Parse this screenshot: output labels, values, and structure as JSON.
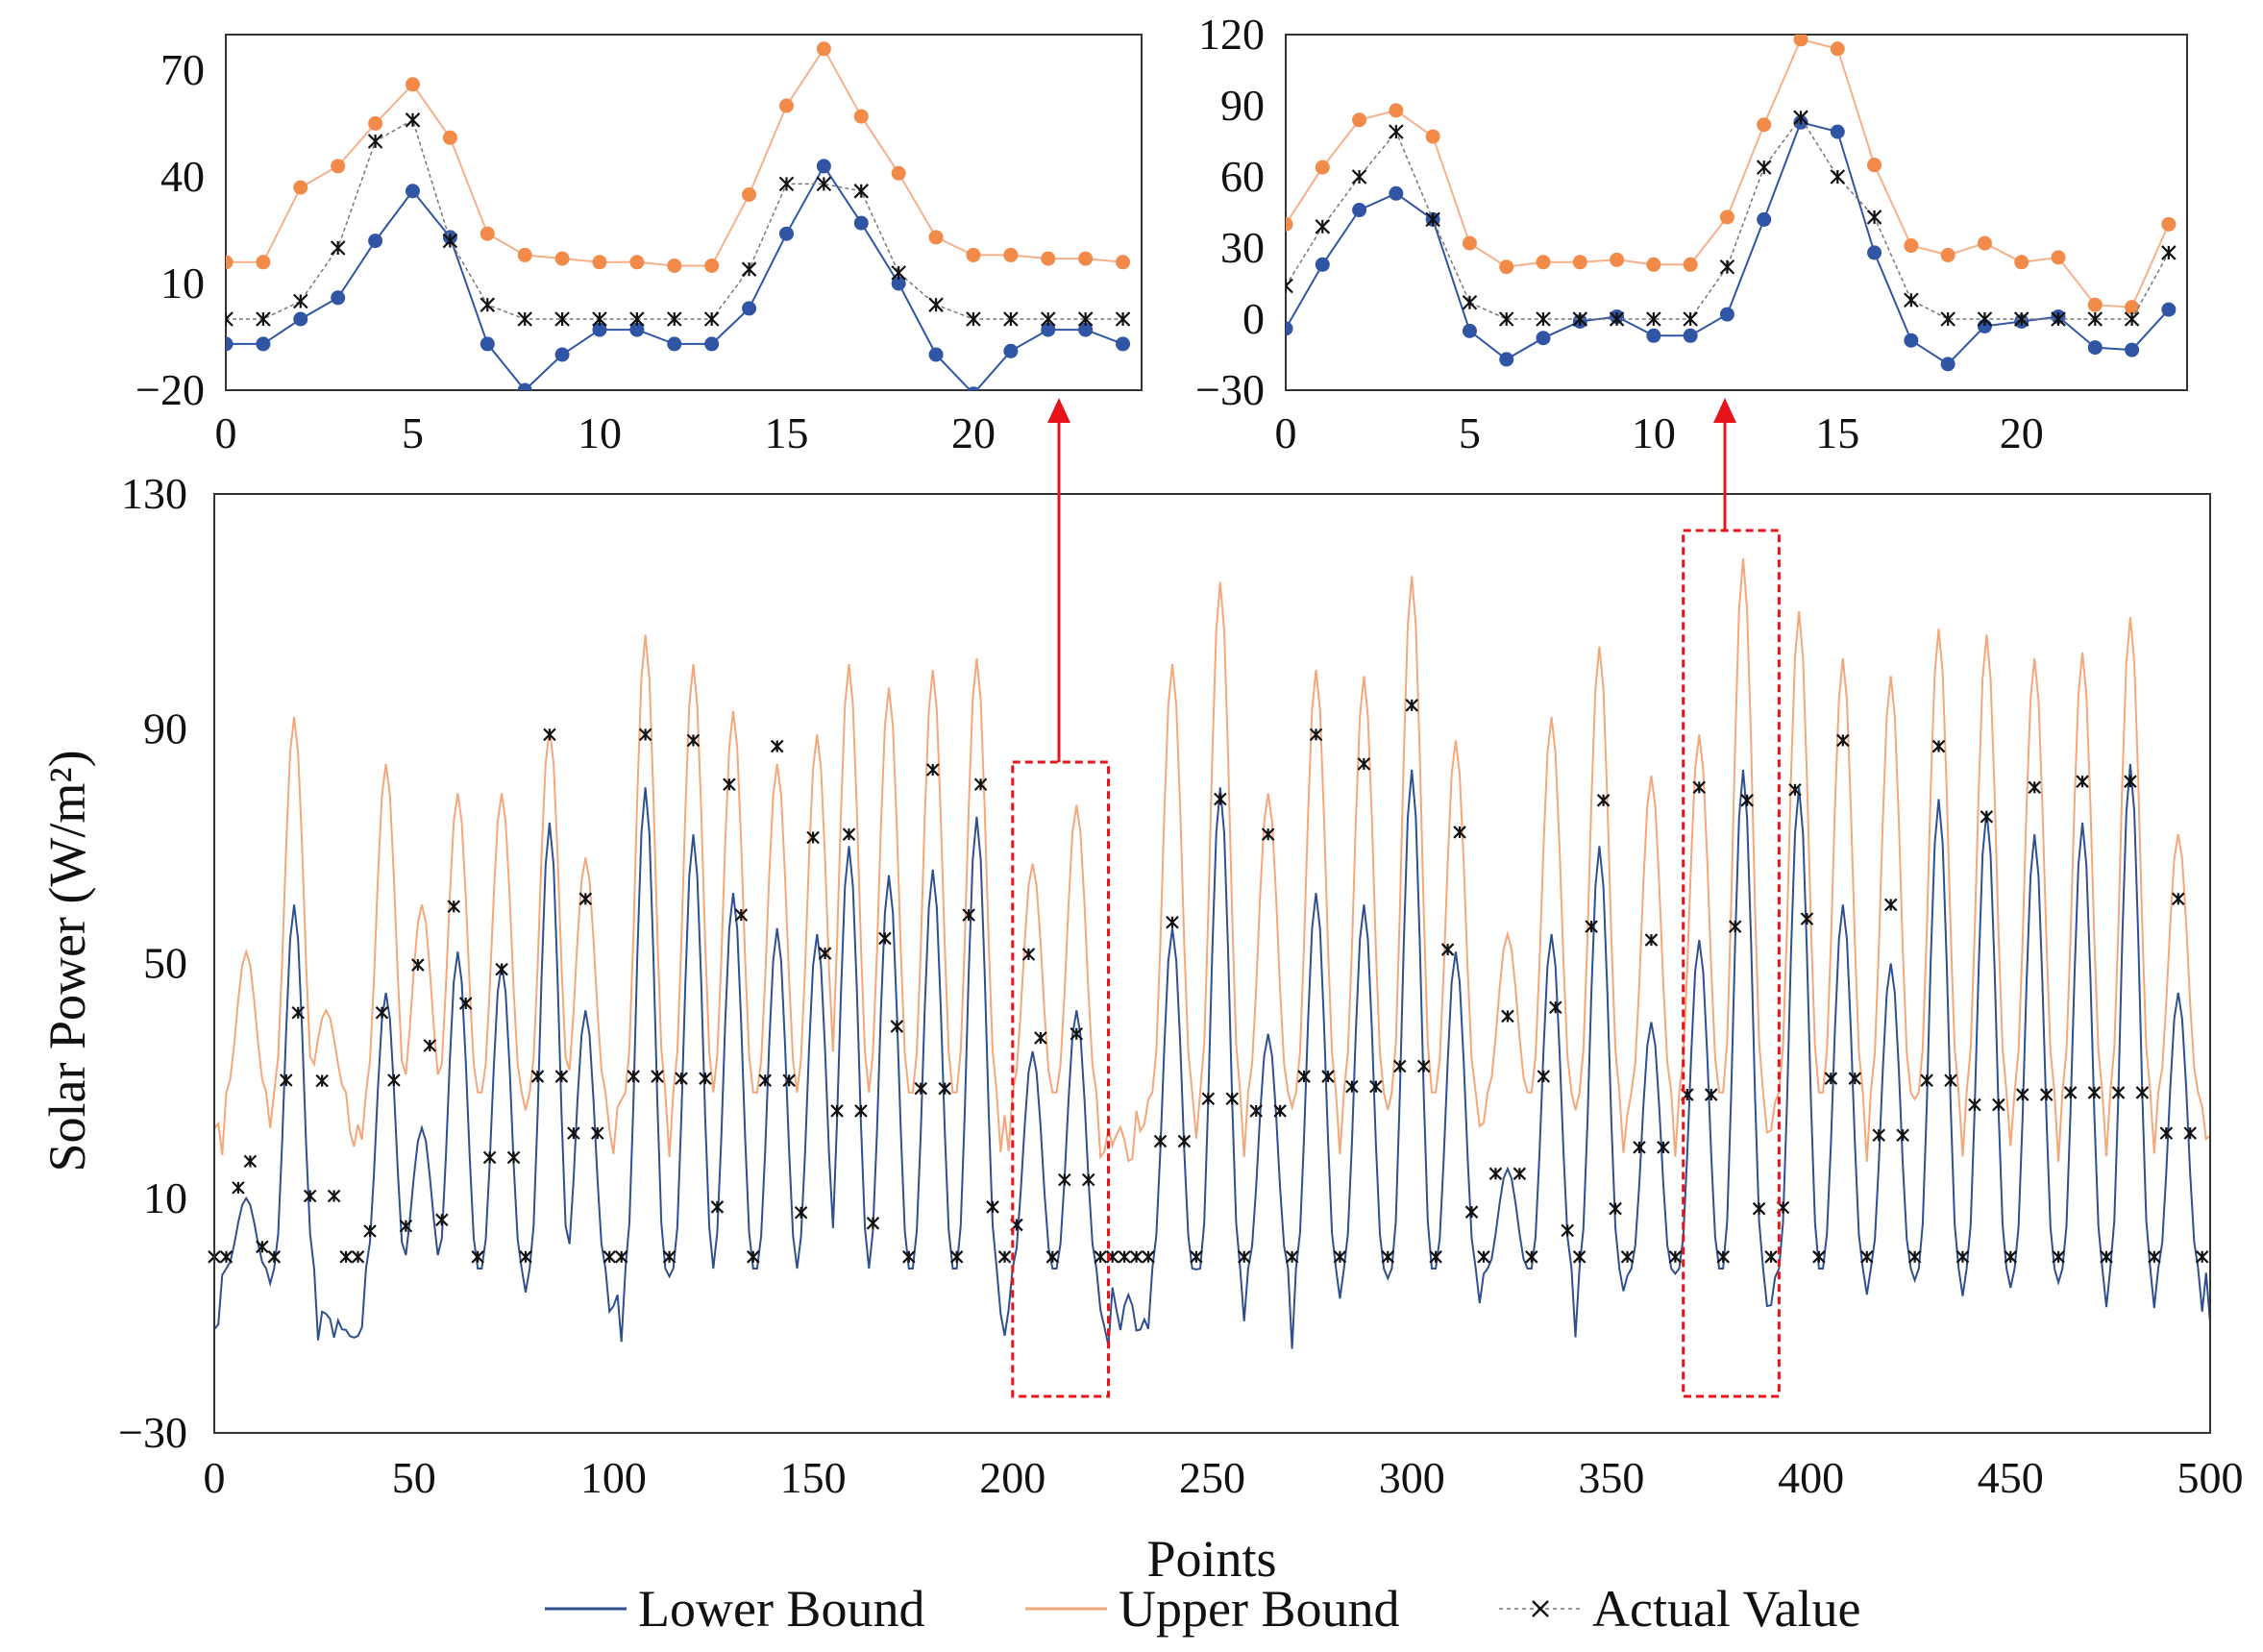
{
  "chart_data": [
    {
      "id": "main",
      "type": "line",
      "title": "",
      "xlabel": "Points",
      "ylabel": "Solar Power (W/m²)",
      "xlim": [
        0,
        500
      ],
      "ylim": [
        -30,
        130
      ],
      "xticks": [
        0,
        50,
        100,
        150,
        200,
        250,
        300,
        350,
        400,
        450,
        500
      ],
      "yticks": [
        -30,
        10,
        50,
        90,
        130
      ],
      "grid": false,
      "legend_position": "bottom",
      "legend": [
        "Lower Bound",
        "Upper Bound",
        "Actual Value"
      ],
      "series": [
        {
          "name": "Lower Bound",
          "color": "#2f4f8f",
          "style": "line",
          "days": [
            {
              "x": 8,
              "peak": 10
            },
            {
              "x": 20,
              "peak": 60
            },
            {
              "x": 43,
              "peak": 45
            },
            {
              "x": 52,
              "peak": 22
            },
            {
              "x": 61,
              "peak": 52
            },
            {
              "x": 72,
              "peak": 50
            },
            {
              "x": 84,
              "peak": 74
            },
            {
              "x": 93,
              "peak": 42
            },
            {
              "x": 108,
              "peak": 80
            },
            {
              "x": 120,
              "peak": 72
            },
            {
              "x": 130,
              "peak": 62
            },
            {
              "x": 141,
              "peak": 56
            },
            {
              "x": 151,
              "peak": 55
            },
            {
              "x": 159,
              "peak": 70
            },
            {
              "x": 169,
              "peak": 65
            },
            {
              "x": 180,
              "peak": 66
            },
            {
              "x": 191,
              "peak": 75
            },
            {
              "x": 205,
              "peak": 35
            },
            {
              "x": 216,
              "peak": 42
            },
            {
              "x": 240,
              "peak": 56
            },
            {
              "x": 252,
              "peak": 80
            },
            {
              "x": 264,
              "peak": 38
            },
            {
              "x": 276,
              "peak": 62
            },
            {
              "x": 288,
              "peak": 60
            },
            {
              "x": 300,
              "peak": 83
            },
            {
              "x": 311,
              "peak": 52
            },
            {
              "x": 324,
              "peak": 15
            },
            {
              "x": 335,
              "peak": 55
            },
            {
              "x": 347,
              "peak": 70
            },
            {
              "x": 360,
              "peak": 40
            },
            {
              "x": 372,
              "peak": 54
            },
            {
              "x": 383,
              "peak": 83
            },
            {
              "x": 397,
              "peak": 80
            },
            {
              "x": 408,
              "peak": 60
            },
            {
              "x": 420,
              "peak": 50
            },
            {
              "x": 432,
              "peak": 78
            },
            {
              "x": 444,
              "peak": 76
            },
            {
              "x": 456,
              "peak": 72
            },
            {
              "x": 468,
              "peak": 74
            },
            {
              "x": 480,
              "peak": 84
            },
            {
              "x": 492,
              "peak": 45
            }
          ],
          "baseline": [
            -25,
            -2
          ]
        },
        {
          "name": "Upper Bound",
          "color": "#f4a77a",
          "style": "line",
          "days": [
            {
              "x": 8,
              "peak": 52
            },
            {
              "x": 20,
              "peak": 92
            },
            {
              "x": 28,
              "peak": 42
            },
            {
              "x": 43,
              "peak": 84
            },
            {
              "x": 52,
              "peak": 60
            },
            {
              "x": 61,
              "peak": 79
            },
            {
              "x": 72,
              "peak": 79
            },
            {
              "x": 84,
              "peak": 90
            },
            {
              "x": 93,
              "peak": 68
            },
            {
              "x": 108,
              "peak": 106
            },
            {
              "x": 120,
              "peak": 101
            },
            {
              "x": 130,
              "peak": 93
            },
            {
              "x": 141,
              "peak": 84
            },
            {
              "x": 151,
              "peak": 89
            },
            {
              "x": 159,
              "peak": 101
            },
            {
              "x": 169,
              "peak": 97
            },
            {
              "x": 180,
              "peak": 100
            },
            {
              "x": 191,
              "peak": 102
            },
            {
              "x": 205,
              "peak": 67
            },
            {
              "x": 216,
              "peak": 77
            },
            {
              "x": 240,
              "peak": 101
            },
            {
              "x": 252,
              "peak": 115
            },
            {
              "x": 264,
              "peak": 79
            },
            {
              "x": 276,
              "peak": 100
            },
            {
              "x": 288,
              "peak": 99
            },
            {
              "x": 300,
              "peak": 116
            },
            {
              "x": 311,
              "peak": 88
            },
            {
              "x": 324,
              "peak": 55
            },
            {
              "x": 335,
              "peak": 92
            },
            {
              "x": 347,
              "peak": 104
            },
            {
              "x": 360,
              "peak": 82
            },
            {
              "x": 372,
              "peak": 89
            },
            {
              "x": 383,
              "peak": 119
            },
            {
              "x": 397,
              "peak": 110
            },
            {
              "x": 408,
              "peak": 102
            },
            {
              "x": 420,
              "peak": 99
            },
            {
              "x": 432,
              "peak": 107
            },
            {
              "x": 444,
              "peak": 106
            },
            {
              "x": 456,
              "peak": 102
            },
            {
              "x": 468,
              "peak": 103
            },
            {
              "x": 480,
              "peak": 109
            },
            {
              "x": 492,
              "peak": 72
            }
          ],
          "baseline": [
            8,
            28
          ]
        },
        {
          "name": "Actual Value",
          "color": "#111111",
          "style": "markers",
          "days": [
            {
              "x": 8,
              "peak": 18
            },
            {
              "x": 20,
              "peak": 46
            },
            {
              "x": 27,
              "peak": 30
            },
            {
              "x": 43,
              "peak": 46
            },
            {
              "x": 52,
              "peak": 55
            },
            {
              "x": 61,
              "peak": 66
            },
            {
              "x": 72,
              "peak": 49
            },
            {
              "x": 84,
              "peak": 89
            },
            {
              "x": 93,
              "peak": 61
            },
            {
              "x": 108,
              "peak": 89
            },
            {
              "x": 120,
              "peak": 88
            },
            {
              "x": 130,
              "peak": 89
            },
            {
              "x": 141,
              "peak": 87
            },
            {
              "x": 151,
              "peak": 79
            },
            {
              "x": 159,
              "peak": 72
            },
            {
              "x": 169,
              "peak": 60
            },
            {
              "x": 180,
              "peak": 83
            },
            {
              "x": 191,
              "peak": 89
            },
            {
              "x": 205,
              "peak": 57
            },
            {
              "x": 216,
              "peak": 38
            },
            {
              "x": 240,
              "peak": 57
            },
            {
              "x": 252,
              "peak": 78
            },
            {
              "x": 264,
              "peak": 72
            },
            {
              "x": 276,
              "peak": 89
            },
            {
              "x": 288,
              "peak": 84
            },
            {
              "x": 300,
              "peak": 94
            },
            {
              "x": 311,
              "peak": 80
            },
            {
              "x": 324,
              "peak": 41
            },
            {
              "x": 335,
              "peak": 47
            },
            {
              "x": 347,
              "peak": 86
            },
            {
              "x": 360,
              "peak": 54
            },
            {
              "x": 372,
              "peak": 80
            },
            {
              "x": 383,
              "peak": 86
            },
            {
              "x": 397,
              "peak": 88
            },
            {
              "x": 408,
              "peak": 88
            },
            {
              "x": 420,
              "peak": 60
            },
            {
              "x": 432,
              "peak": 87
            },
            {
              "x": 444,
              "peak": 75
            },
            {
              "x": 456,
              "peak": 80
            },
            {
              "x": 468,
              "peak": 81
            },
            {
              "x": 480,
              "peak": 81
            },
            {
              "x": 492,
              "peak": 61
            }
          ],
          "baseline": [
            0,
            0
          ]
        }
      ],
      "highlight_ranges": [
        [
          200,
          224
        ],
        [
          368,
          392
        ]
      ]
    },
    {
      "id": "inset-left",
      "type": "line",
      "xlim": [
        0,
        24.5
      ],
      "ylim": [
        -20,
        80
      ],
      "xticks": [
        0,
        5,
        10,
        15,
        20
      ],
      "yticks": [
        -20,
        10,
        40,
        70
      ],
      "series": [
        {
          "name": "Upper Bound",
          "color": "#f4a77a",
          "marker": "circle",
          "x": [
            0,
            1,
            2,
            3,
            4,
            5,
            6,
            7,
            8,
            9,
            10,
            11,
            12,
            13,
            14,
            15,
            16,
            17,
            18,
            19,
            20,
            21,
            22,
            23,
            24
          ],
          "values": [
            16,
            16,
            37,
            43,
            55,
            66,
            51,
            24,
            18,
            17,
            16,
            16,
            15,
            15,
            35,
            60,
            76,
            57,
            41,
            23,
            18,
            18,
            17,
            17,
            16
          ]
        },
        {
          "name": "Lower Bound",
          "color": "#2f55a4",
          "marker": "circle",
          "x": [
            0,
            1,
            2,
            3,
            4,
            5,
            6,
            7,
            8,
            9,
            10,
            11,
            12,
            13,
            14,
            15,
            16,
            17,
            18,
            19,
            20,
            21,
            22,
            23,
            24
          ],
          "values": [
            -7,
            -7,
            0,
            6,
            22,
            36,
            23,
            -7,
            -20,
            -10,
            -3,
            -3,
            -7,
            -7,
            3,
            24,
            43,
            27,
            10,
            -10,
            -21,
            -9,
            -3,
            -3,
            -7
          ]
        },
        {
          "name": "Actual Value",
          "color": "#111111",
          "marker": "x",
          "x": [
            0,
            1,
            2,
            3,
            4,
            5,
            6,
            7,
            8,
            9,
            10,
            11,
            12,
            13,
            14,
            15,
            16,
            17,
            18,
            19,
            20,
            21,
            22,
            23,
            24
          ],
          "values": [
            0,
            0,
            5,
            20,
            50,
            56,
            22,
            4,
            0,
            0,
            0,
            0,
            0,
            0,
            14,
            38,
            38,
            36,
            13,
            4,
            0,
            0,
            0,
            0,
            0
          ]
        }
      ]
    },
    {
      "id": "inset-right",
      "type": "line",
      "xlim": [
        0,
        24.5
      ],
      "ylim": [
        -30,
        120
      ],
      "xticks": [
        0,
        5,
        10,
        15,
        20
      ],
      "yticks": [
        -30,
        0,
        30,
        60,
        90,
        120
      ],
      "series": [
        {
          "name": "Upper Bound",
          "color": "#f4a77a",
          "marker": "circle",
          "x": [
            0,
            1,
            2,
            3,
            4,
            5,
            6,
            7,
            8,
            9,
            10,
            11,
            12,
            13,
            14,
            15,
            16,
            17,
            18,
            19,
            20,
            21,
            22,
            23,
            24
          ],
          "values": [
            40,
            64,
            84,
            88,
            77,
            32,
            22,
            24,
            24,
            25,
            23,
            23,
            43,
            82,
            118,
            114,
            65,
            31,
            27,
            32,
            24,
            26,
            6,
            5,
            40
          ]
        },
        {
          "name": "Lower Bound",
          "color": "#2f55a4",
          "marker": "circle",
          "x": [
            0,
            1,
            2,
            3,
            4,
            5,
            6,
            7,
            8,
            9,
            10,
            11,
            12,
            13,
            14,
            15,
            16,
            17,
            18,
            19,
            20,
            21,
            22,
            23,
            24
          ],
          "values": [
            -4,
            23,
            46,
            53,
            42,
            -5,
            -17,
            -8,
            -1,
            1,
            -7,
            -7,
            2,
            42,
            83,
            79,
            28,
            -9,
            -19,
            -3,
            -1,
            1,
            -12,
            -13,
            4
          ]
        },
        {
          "name": "Actual Value",
          "color": "#111111",
          "marker": "x",
          "x": [
            0,
            1,
            2,
            3,
            4,
            5,
            6,
            7,
            8,
            9,
            10,
            11,
            12,
            13,
            14,
            15,
            16,
            17,
            18,
            19,
            20,
            21,
            22,
            23,
            24
          ],
          "values": [
            14,
            39,
            60,
            79,
            42,
            7,
            0,
            0,
            0,
            0,
            0,
            0,
            22,
            64,
            85,
            60,
            43,
            8,
            0,
            0,
            0,
            0,
            0,
            0,
            28
          ]
        }
      ]
    }
  ],
  "legend": {
    "items": [
      "Lower Bound",
      "Upper Bound",
      "Actual Value"
    ]
  },
  "colors": {
    "lower": "#2f4f8f",
    "upper": "#f4a77a",
    "actual": "#111111",
    "highlight": "#e8141c",
    "inset_lower": "#2f55a4",
    "inset_upper": "#f28a4a"
  }
}
